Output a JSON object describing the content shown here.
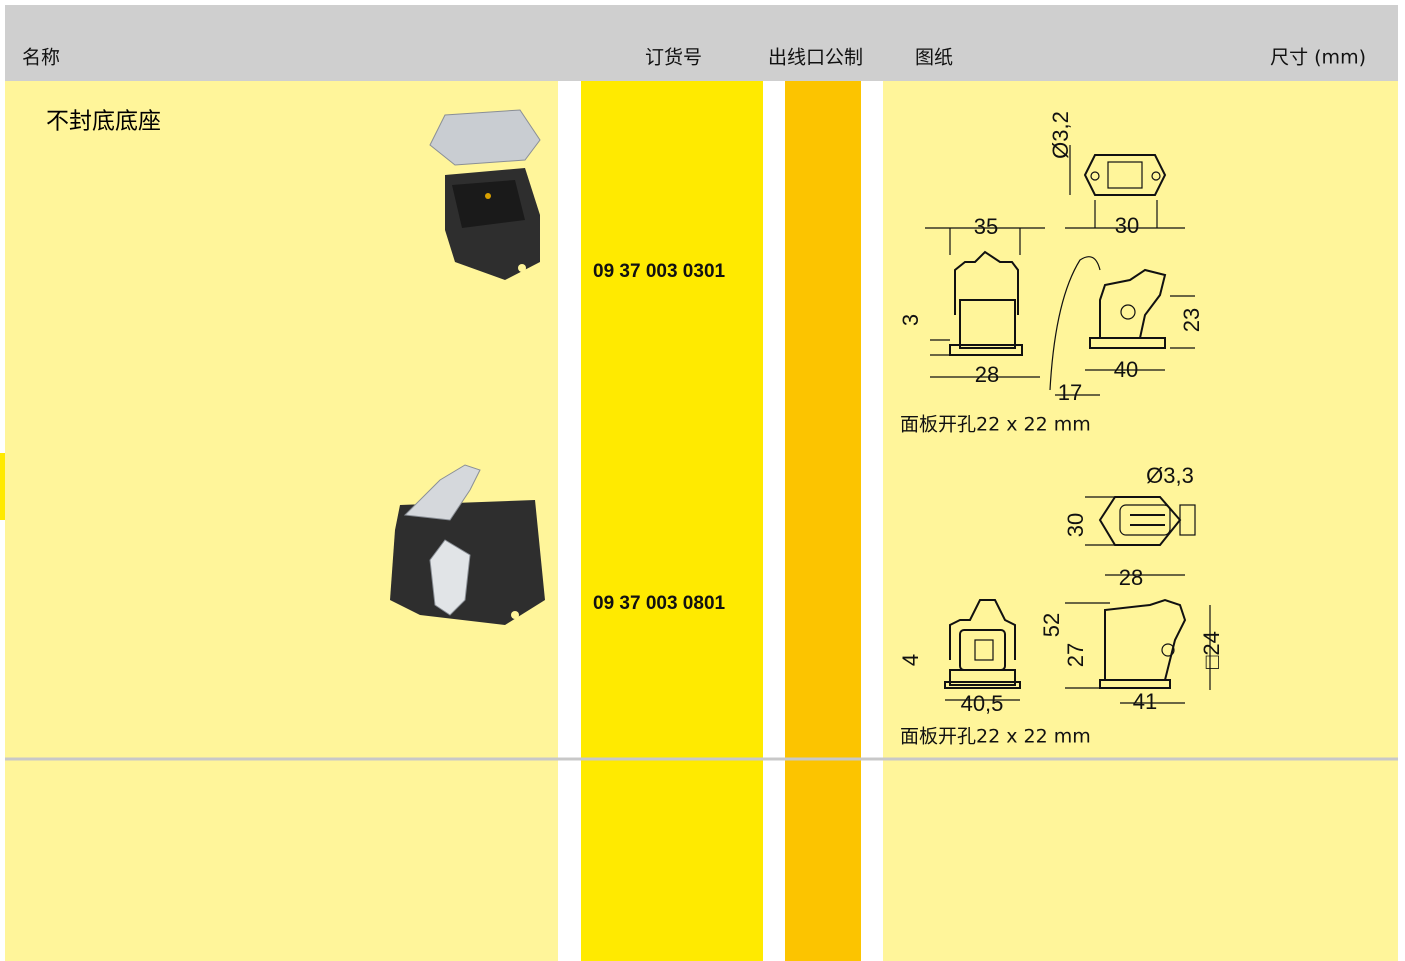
{
  "header": {
    "columns": [
      "名称",
      "订货号",
      "出线口公制",
      "图纸",
      "尺寸 (mm)"
    ]
  },
  "rows": [
    {
      "title": "不封底底座",
      "order_number": "09 37 003 0301",
      "drawing": {
        "labels": [
          "Ø3,2",
          "35",
          "30",
          "3",
          "23",
          "28",
          "17",
          "40"
        ],
        "caption": "面板开孔22 x 22 mm"
      }
    },
    {
      "order_number": "09 37 003 0801",
      "drawing": {
        "labels": [
          "Ø3,3",
          "30",
          "28",
          "4",
          "52",
          "27",
          "□24",
          "40,5",
          "41"
        ],
        "caption": "面板开孔22 x 22 mm"
      }
    }
  ]
}
